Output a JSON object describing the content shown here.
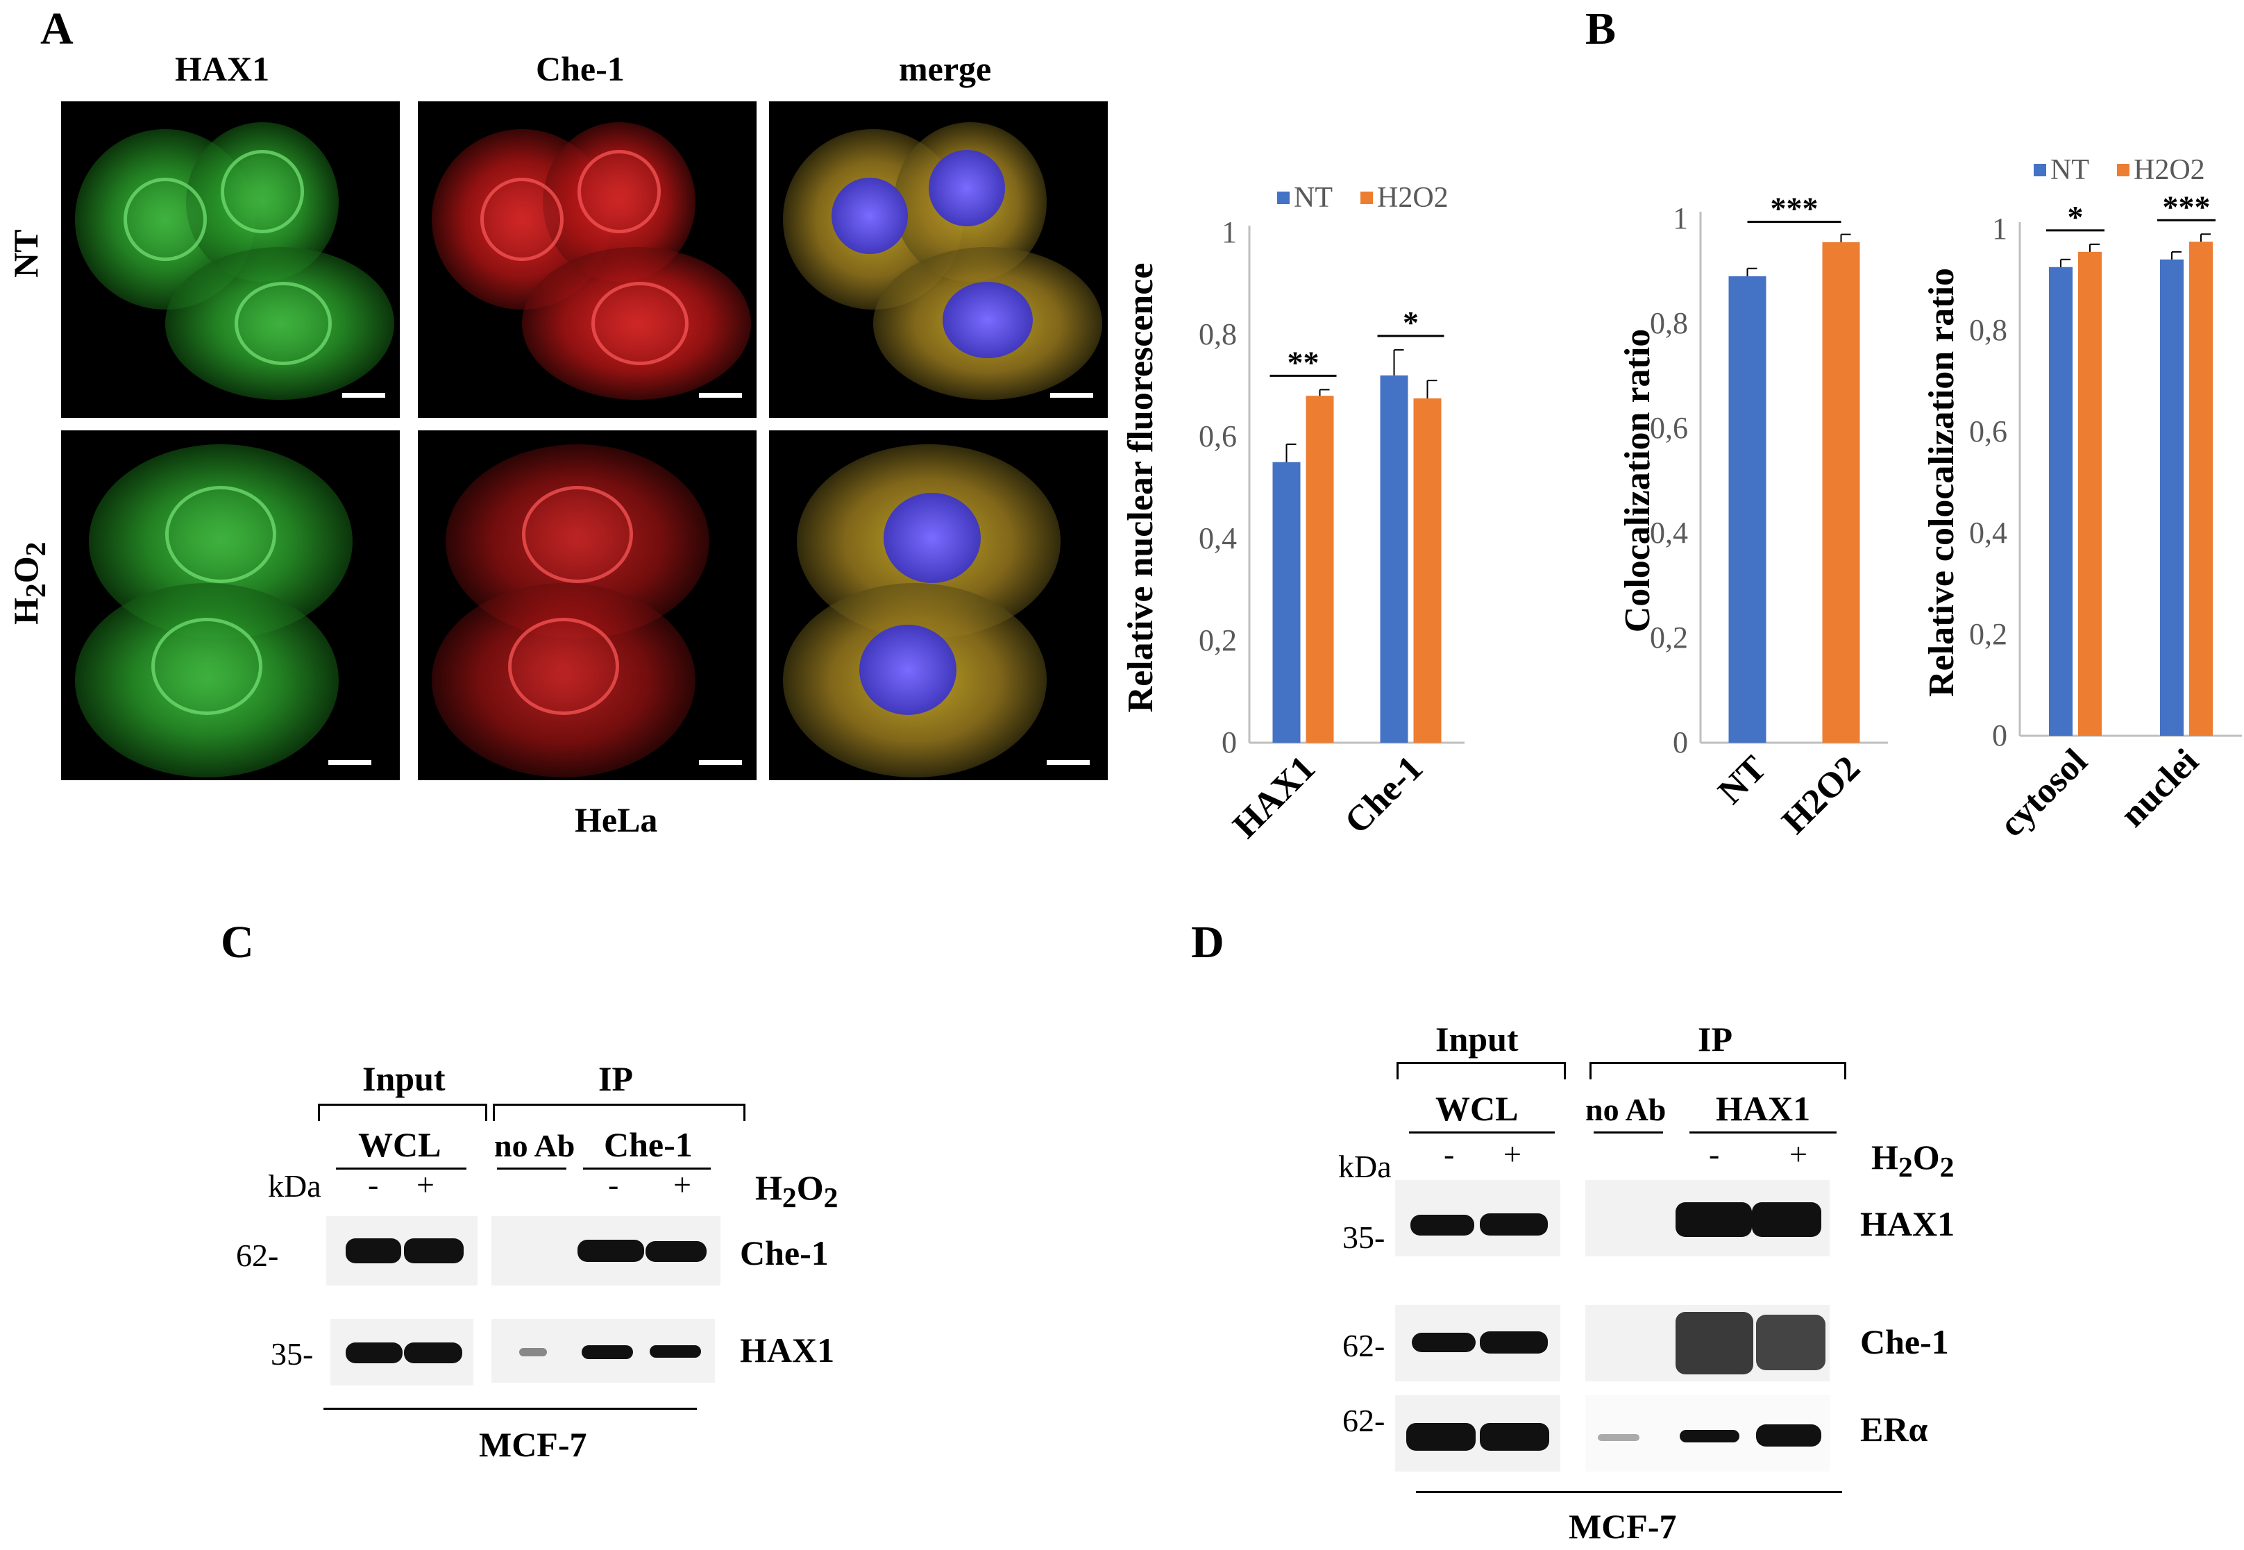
{
  "panelA": {
    "letter": "A",
    "col_labels": [
      "HAX1",
      "Che-1",
      "merge"
    ],
    "row_labels": [
      "NT",
      "H"
    ],
    "row2_sub": "2",
    "row2_o": "O",
    "cell_line": "HeLa"
  },
  "panelB": {
    "letter": "B"
  },
  "panelC": {
    "letter": "C",
    "input": "Input",
    "ip": "IP",
    "wcl": "WCL",
    "noab": "no Ab",
    "che1_ip": "Che-1",
    "kda": "kDa",
    "minus": "-",
    "plus": "+",
    "h2o2_h": "H",
    "h2o2_2a": "2",
    "h2o2_o": "O",
    "h2o2_2b": "2",
    "mw": [
      "62-",
      "35-"
    ],
    "bands": [
      "Che-1",
      "HAX1"
    ],
    "cell_line": "MCF-7"
  },
  "panelD": {
    "letter": "D",
    "input": "Input",
    "ip": "IP",
    "wcl": "WCL",
    "noab": "no Ab",
    "hax1_ip": "HAX1",
    "kda": "kDa",
    "minus": "-",
    "plus": "+",
    "h2o2_h": "H",
    "h2o2_2a": "2",
    "h2o2_o": "O",
    "h2o2_2b": "2",
    "mw": [
      "35-",
      "62-",
      "62-"
    ],
    "bands": [
      "HAX1",
      "Che-1",
      "ERα"
    ],
    "cell_line": "MCF-7"
  },
  "colors": {
    "NT": "#4472C4",
    "H2O2": "#ED7D31",
    "axis": "#595959"
  },
  "chart_data": [
    {
      "type": "bar",
      "categories": [
        "HAX1",
        "Che-1"
      ],
      "series": [
        {
          "name": "NT",
          "values": [
            0.55,
            0.72
          ],
          "errors": [
            0.035,
            0.05
          ]
        },
        {
          "name": "H2O2",
          "values": [
            0.68,
            0.675
          ],
          "errors": [
            0.012,
            0.035
          ]
        }
      ],
      "ylabel": "Relative nuclear  fluorescence",
      "ylim": [
        0,
        1
      ],
      "yticks": [
        "0",
        "0,2",
        "0,4",
        "0,6",
        "0,8",
        "1"
      ],
      "significance": [
        "**",
        "*"
      ],
      "legend": "top"
    },
    {
      "type": "bar",
      "categories": [
        "NT",
        "H2O2"
      ],
      "values": [
        0.89,
        0.955
      ],
      "errors": [
        0.015,
        0.015
      ],
      "ylabel": "Colocalization  ratio",
      "ylim": [
        0,
        1
      ],
      "yticks": [
        "0",
        "0,2",
        "0,4",
        "0,6",
        "0,8",
        "1"
      ],
      "significance": [
        "***"
      ]
    },
    {
      "type": "bar",
      "categories": [
        "cytosol",
        "nuclei"
      ],
      "series": [
        {
          "name": "NT",
          "values": [
            0.925,
            0.94
          ],
          "errors": [
            0.015,
            0.015
          ]
        },
        {
          "name": "H2O2",
          "values": [
            0.955,
            0.975
          ],
          "errors": [
            0.015,
            0.015
          ]
        }
      ],
      "ylabel": "Relative colocalization  ratio",
      "ylim": [
        0,
        1
      ],
      "yticks": [
        "0",
        "0,2",
        "0,4",
        "0,6",
        "0,8",
        "1"
      ],
      "significance": [
        "*",
        "***"
      ],
      "legend": "top"
    }
  ]
}
